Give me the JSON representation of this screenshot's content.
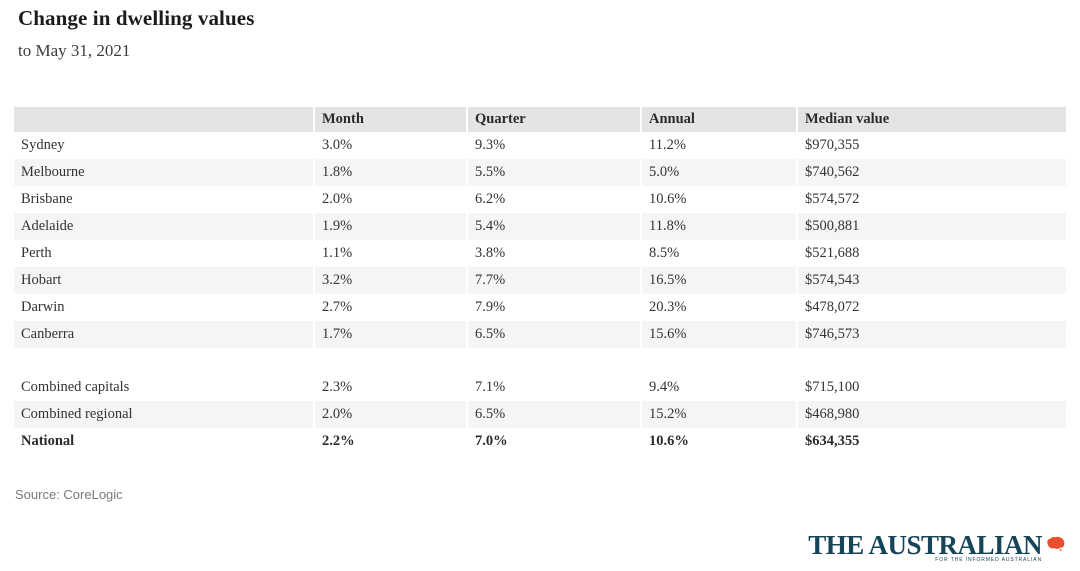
{
  "page": {
    "title": "Change in dwelling values",
    "subtitle": "to May 31, 2021",
    "source": "Source: CoreLogic"
  },
  "logo": {
    "masthead": "THE AUSTRALIAN",
    "tagline": "FOR THE INFORMED AUSTRALIAN",
    "masthead_color": "#16455a",
    "map_icon": "australia-map-icon",
    "map_color": "#e8502e"
  },
  "colors": {
    "header_bg": "#e4e4e3",
    "alt_row_bg": "#f5f5f3",
    "row_bg": "#ffffff",
    "text": "#333333",
    "source_text": "#7a7a7a"
  },
  "chart_data": {
    "type": "table",
    "title": "Change in dwelling values",
    "subtitle": "to May 31, 2021",
    "source": "CoreLogic",
    "columns": [
      "",
      "Month",
      "Quarter",
      "Annual",
      "Median value"
    ],
    "groups": [
      {
        "name": "capitals",
        "rows": [
          {
            "bold": false,
            "cells": [
              "Sydney",
              "3.0%",
              "9.3%",
              "11.2%",
              "$970,355"
            ]
          },
          {
            "bold": false,
            "cells": [
              "Melbourne",
              "1.8%",
              "5.5%",
              "5.0%",
              "$740,562"
            ]
          },
          {
            "bold": false,
            "cells": [
              "Brisbane",
              "2.0%",
              "6.2%",
              "10.6%",
              "$574,572"
            ]
          },
          {
            "bold": false,
            "cells": [
              "Adelaide",
              "1.9%",
              "5.4%",
              "11.8%",
              "$500,881"
            ]
          },
          {
            "bold": false,
            "cells": [
              "Perth",
              "1.1%",
              "3.8%",
              "8.5%",
              "$521,688"
            ]
          },
          {
            "bold": false,
            "cells": [
              "Hobart",
              "3.2%",
              "7.7%",
              "16.5%",
              "$574,543"
            ]
          },
          {
            "bold": false,
            "cells": [
              "Darwin",
              "2.7%",
              "7.9%",
              "20.3%",
              "$478,072"
            ]
          },
          {
            "bold": false,
            "cells": [
              "Canberra",
              "1.7%",
              "6.5%",
              "15.6%",
              "$746,573"
            ]
          }
        ]
      },
      {
        "name": "aggregates",
        "rows": [
          {
            "bold": false,
            "cells": [
              "Combined capitals",
              "2.3%",
              "7.1%",
              "9.4%",
              "$715,100"
            ]
          },
          {
            "bold": false,
            "cells": [
              "Combined regional",
              "2.0%",
              "6.5%",
              "15.2%",
              "$468,980"
            ]
          },
          {
            "bold": true,
            "cells": [
              "National",
              "2.2%",
              "7.0%",
              "10.6%",
              "$634,355"
            ]
          }
        ]
      }
    ]
  }
}
